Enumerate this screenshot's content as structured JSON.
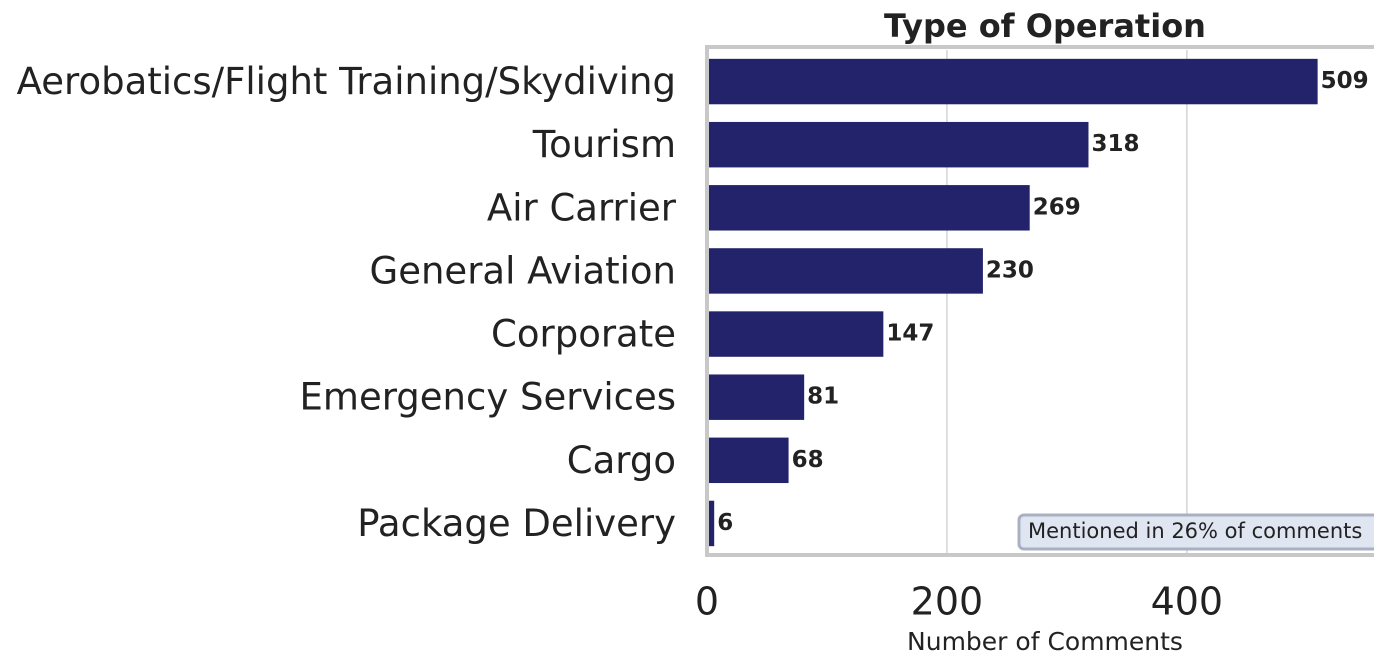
{
  "chart_data": {
    "type": "barh",
    "title": "Type of Operation",
    "categories": [
      "Aerobatics/Flight Training/Skydiving",
      "Tourism",
      "Air Carrier",
      "General Aviation",
      "Corporate",
      "Emergency Services",
      "Cargo",
      "Package Delivery"
    ],
    "values": [
      509,
      318,
      269,
      230,
      147,
      81,
      68,
      6
    ],
    "color": "#23236b",
    "xlabel": "Number of Comments",
    "xlim": [
      0,
      556
    ],
    "xticks": [
      0,
      200,
      400
    ],
    "grid": true,
    "annotation": "Mentioned in 26% of comments"
  }
}
